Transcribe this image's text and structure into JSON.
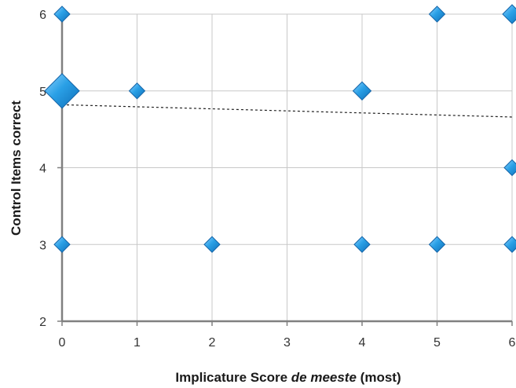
{
  "chart_data": {
    "type": "scatter",
    "xlabel": "Implicature Score de meeste (most)",
    "xlabel_parts": {
      "before": "Implicature Score ",
      "italic": "de meeste",
      "after": " (most)"
    },
    "ylabel": "Control Items correct",
    "xlim": [
      0,
      6
    ],
    "ylim": [
      2,
      6
    ],
    "x_ticks": [
      "0",
      "1",
      "2",
      "3",
      "4",
      "5",
      "6"
    ],
    "y_ticks": [
      "2",
      "3",
      "4",
      "5",
      "6"
    ],
    "grid": true,
    "marker": "diamond",
    "marker_color": "#2196d8",
    "marker_edge_color": "#1565a8",
    "points": [
      {
        "x": 0,
        "y": 6,
        "weight": 1
      },
      {
        "x": 5,
        "y": 6,
        "weight": 1
      },
      {
        "x": 6,
        "y": 6,
        "weight": 1.2
      },
      {
        "x": 0,
        "y": 5,
        "weight": 2.2
      },
      {
        "x": 1,
        "y": 5,
        "weight": 1
      },
      {
        "x": 4,
        "y": 5,
        "weight": 1.15
      },
      {
        "x": 6,
        "y": 4,
        "weight": 1
      },
      {
        "x": 0,
        "y": 3,
        "weight": 1
      },
      {
        "x": 2,
        "y": 3,
        "weight": 1
      },
      {
        "x": 4,
        "y": 3,
        "weight": 1
      },
      {
        "x": 5,
        "y": 3,
        "weight": 1
      },
      {
        "x": 6,
        "y": 3,
        "weight": 1
      }
    ],
    "trendline": {
      "style": "dotted",
      "x": [
        0,
        6
      ],
      "y": [
        4.82,
        4.66
      ]
    }
  }
}
